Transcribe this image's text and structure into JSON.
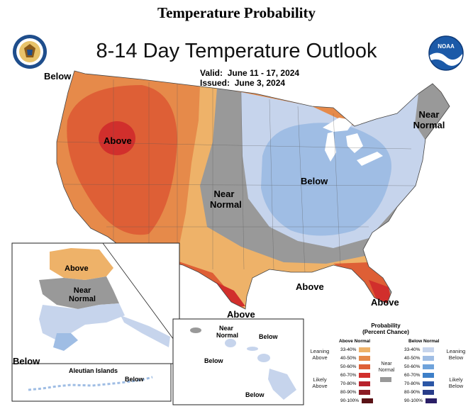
{
  "heading": "Temperature Probability",
  "title": "8-14 Day Temperature Outlook",
  "valid_label": "Valid:",
  "valid_dates": "June 11 - 17, 2024",
  "issued_label": "Issued:",
  "issued_date": "June 3, 2024",
  "logos": {
    "left": "doc-seal-icon",
    "right": "noaa-logo-icon",
    "noaa_text": "NOAA"
  },
  "labels": {
    "below_nw": "Below",
    "above_west": "Above",
    "near_normal_central_1": "Near",
    "near_normal_central_2": "Normal",
    "below_east": "Below",
    "near_normal_ne_1": "Near",
    "near_normal_ne_2": "Normal",
    "above_gulf": "Above",
    "above_texas": "Above",
    "above_florida": "Above",
    "ak_above": "Above",
    "ak_near_1": "Near",
    "ak_near_2": "Normal",
    "ak_below": "Below",
    "aleutian_title": "Aleutian Islands",
    "aleutian_below": "Below",
    "hi_near_1": "Near",
    "hi_near_2": "Normal",
    "hi_below_1": "Below",
    "hi_below_2": "Below",
    "hi_below_3": "Below"
  },
  "legend": {
    "title_1": "Probability",
    "title_2": "(Percent Chance)",
    "above_head": "Above Normal",
    "below_head": "Below Normal",
    "near_1": "Near",
    "near_2": "Normal",
    "leaning_above_1": "Leaning",
    "leaning_above_2": "Above",
    "likely_above_1": "Likely",
    "likely_above_2": "Above",
    "leaning_below_1": "Leaning",
    "leaning_below_2": "Below",
    "likely_below_1": "Likely",
    "likely_below_2": "Below",
    "above": [
      {
        "range": "33-40%",
        "color": "#eeb269"
      },
      {
        "range": "40-50%",
        "color": "#e68a4a"
      },
      {
        "range": "50-60%",
        "color": "#de5f36"
      },
      {
        "range": "60-70%",
        "color": "#d12f2c"
      },
      {
        "range": "70-80%",
        "color": "#b8222c"
      },
      {
        "range": "80-90%",
        "color": "#8c1c24"
      },
      {
        "range": "90-100%",
        "color": "#5a1216"
      }
    ],
    "near_color": "#999999",
    "below": [
      {
        "range": "33-40%",
        "color": "#c6d4ec"
      },
      {
        "range": "40-50%",
        "color": "#9fbde4"
      },
      {
        "range": "50-60%",
        "color": "#6fa3db"
      },
      {
        "range": "60-70%",
        "color": "#3d7fc8"
      },
      {
        "range": "70-80%",
        "color": "#2b56a6"
      },
      {
        "range": "80-90%",
        "color": "#283c8a"
      },
      {
        "range": "90-100%",
        "color": "#2a1e66"
      }
    ]
  }
}
